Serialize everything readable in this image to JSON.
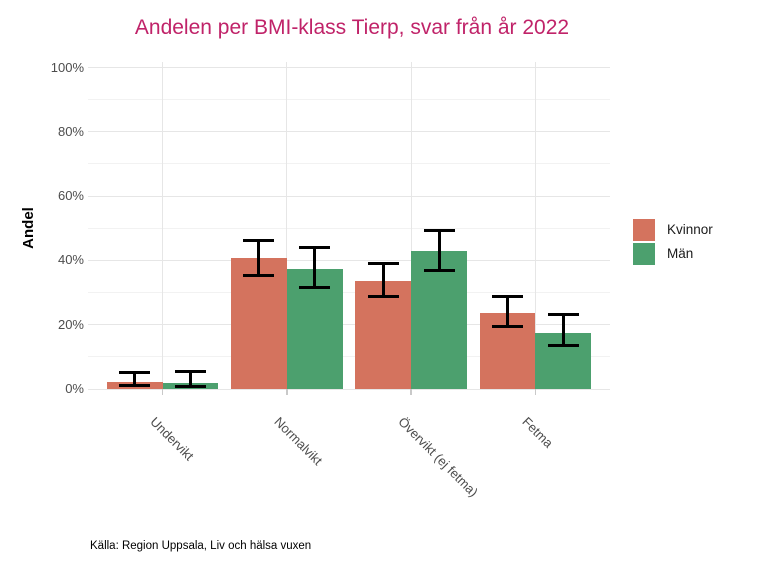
{
  "title": "Andelen per BMI-klass Tierp, svar från år 2022",
  "caption": "Källa: Region Uppsala, Liv och hälsa vuxen",
  "colors": {
    "title": "#C02369",
    "kvinnor": "#D4735E",
    "man": "#4CA06E",
    "grid_major": "#E6E6E6",
    "grid_minor": "#F2F2F2",
    "axis_text": "#4D4D4D",
    "errorbar": "#000000"
  },
  "legend": {
    "items": [
      {
        "label": "Kvinnor",
        "color": "#D4735E"
      },
      {
        "label": "Män",
        "color": "#4CA06E"
      }
    ]
  },
  "chart_data": {
    "type": "bar",
    "title": "Andelen per BMI-klass Tierp, svar från år 2022",
    "xlabel": "",
    "ylabel": "Andel",
    "categories": [
      "Undervikt",
      "Normalvikt",
      "Övervikt (ej fetma)",
      "Fetma"
    ],
    "series": [
      {
        "name": "Kvinnor",
        "color": "#D4735E",
        "values": [
          2.1,
          40.7,
          33.5,
          23.7
        ],
        "ci_low": [
          1.2,
          35.2,
          28.9,
          19.4
        ],
        "ci_high": [
          5.1,
          46.3,
          39.0,
          28.9
        ]
      },
      {
        "name": "Män",
        "color": "#4CA06E",
        "values": [
          1.8,
          37.3,
          42.9,
          17.5
        ],
        "ci_low": [
          0.9,
          31.7,
          37.0,
          13.6
        ],
        "ci_high": [
          5.4,
          43.9,
          49.3,
          23.2
        ]
      }
    ],
    "ylim": [
      0,
      100
    ],
    "y_ticks": [
      {
        "value": 0,
        "label": "0%"
      },
      {
        "value": 20,
        "label": "20%"
      },
      {
        "value": 40,
        "label": "40%"
      },
      {
        "value": 60,
        "label": "60%"
      },
      {
        "value": 80,
        "label": "80%"
      },
      {
        "value": 100,
        "label": "100%"
      }
    ],
    "y_minor_ticks": [
      10,
      30,
      50,
      70,
      90
    ],
    "grid": "horizontal major+minor, vertical at category centers",
    "legend_position": "right",
    "error_bars": true,
    "x_tick_angle": -45
  }
}
